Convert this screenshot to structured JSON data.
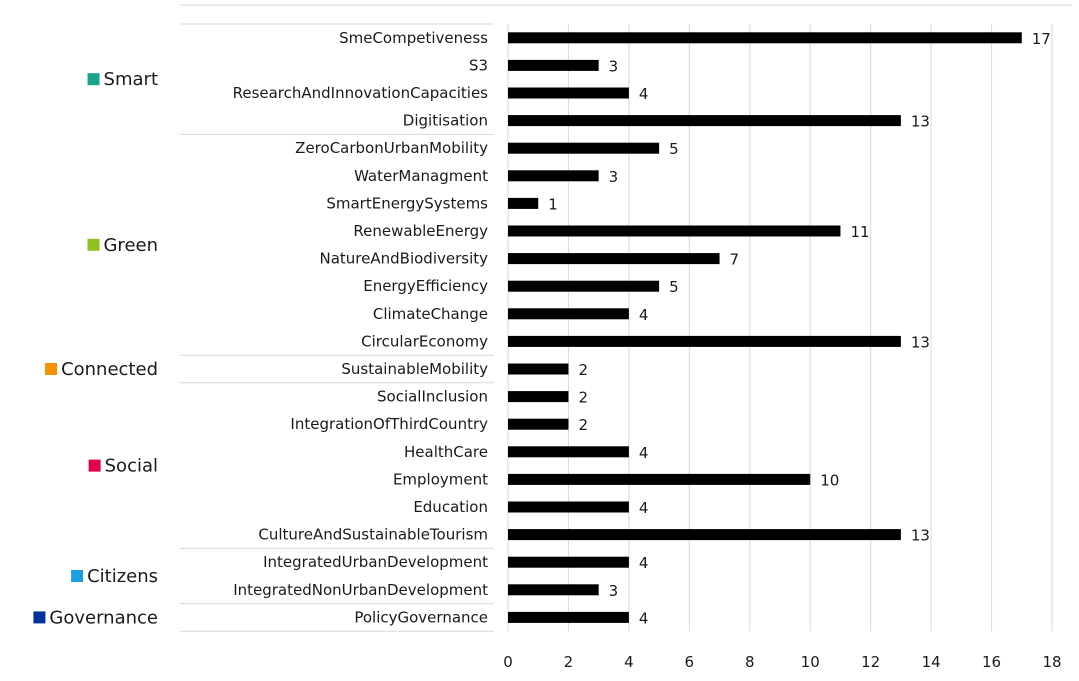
{
  "chart_data": {
    "type": "bar",
    "orientation": "horizontal",
    "xlim": [
      0,
      18
    ],
    "x_ticks": [
      0,
      2,
      4,
      6,
      8,
      10,
      12,
      14,
      16,
      18
    ],
    "grid": true,
    "bar_color": "#000000",
    "groups": [
      {
        "name": "Smart",
        "color": "#17a589",
        "categories": [
          "SmeCompetiveness",
          "S3",
          "ResearchAndInnovationCapacities",
          "Digitisation"
        ],
        "values": [
          17,
          3,
          4,
          13
        ]
      },
      {
        "name": "Green",
        "color": "#8dc21f",
        "categories": [
          "ZeroCarbonUrbanMobility",
          "WaterManagment",
          "SmartEnergySystems",
          "RenewableEnergy",
          "NatureAndBiodiversity",
          "EnergyEfficiency",
          "ClimateChange",
          "CircularEconomy"
        ],
        "values": [
          5,
          3,
          1,
          11,
          7,
          5,
          4,
          13
        ]
      },
      {
        "name": "Connected",
        "color": "#f39200",
        "categories": [
          "SustainableMobility"
        ],
        "values": [
          2
        ]
      },
      {
        "name": "Social",
        "color": "#e2004a",
        "categories": [
          "SocialInclusion",
          "IntegrationOfThirdCountry",
          "HealthCare",
          "Employment",
          "Education",
          "CultureAndSustainableTourism"
        ],
        "values": [
          2,
          2,
          4,
          10,
          4,
          13
        ]
      },
      {
        "name": "Citizens",
        "color": "#1ba1e2",
        "categories": [
          "IntegratedUrbanDevelopment",
          "IntegratedNonUrbanDevelopment"
        ],
        "values": [
          4,
          3
        ]
      },
      {
        "name": "Governance",
        "color": "#003399",
        "categories": [
          "PolicyGovernance"
        ],
        "values": [
          4
        ]
      }
    ]
  }
}
